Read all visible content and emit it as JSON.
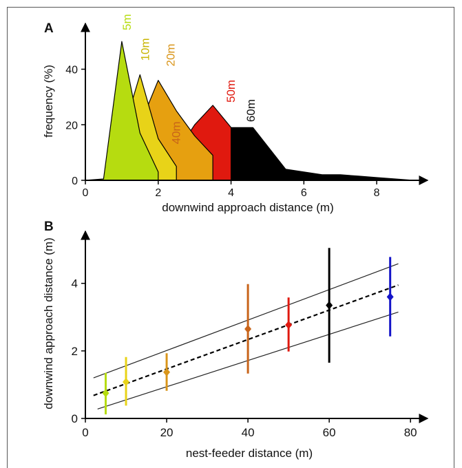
{
  "chart_data": [
    {
      "panel": "A",
      "type": "area",
      "xlabel": "downwind approach distance (m)",
      "ylabel": "frequency (%)",
      "xlim": [
        0,
        9
      ],
      "ylim": [
        0,
        55
      ],
      "xticks": [
        "0",
        "2",
        "4",
        "6",
        "8"
      ],
      "yticks": [
        "0",
        "20",
        "40"
      ],
      "series": [
        {
          "name": "60m",
          "color": "#000000",
          "x": [
            0.0,
            0.5,
            1.0,
            1.5,
            2.0,
            2.5,
            3.0,
            3.5,
            3.8,
            4.1,
            4.6,
            5.5,
            6.0,
            6.5,
            7.0,
            7.5,
            8.0,
            8.5,
            9.0
          ],
          "values": [
            0,
            0,
            0,
            2,
            3,
            5,
            8,
            14,
            19,
            19,
            19,
            4,
            3,
            2,
            2,
            1.5,
            1,
            0.5,
            0
          ]
        },
        {
          "name": "50m",
          "color": "#e0190f",
          "x": [
            0.0,
            1.5,
            2.0,
            2.5,
            3.0,
            3.5,
            4.0
          ],
          "values": [
            0,
            0,
            2,
            10,
            20,
            27,
            19
          ]
        },
        {
          "name": "40m",
          "color": "#c85a14",
          "x": [
            0.0,
            0.5,
            1.0,
            1.5,
            2.0,
            2.5,
            3.0
          ],
          "values": [
            0,
            0,
            6,
            8,
            9,
            8,
            9
          ]
        },
        {
          "name": "20m",
          "color": "#e6a010",
          "x": [
            0.0,
            0.5,
            1.0,
            1.5,
            2.0,
            2.5,
            3.0,
            3.5
          ],
          "values": [
            0,
            0,
            10,
            20,
            36,
            25,
            16,
            9
          ]
        },
        {
          "name": "10m",
          "color": "#e8d318",
          "x": [
            0.0,
            0.5,
            1.0,
            1.5,
            2.0,
            2.5
          ],
          "values": [
            0,
            0,
            16,
            38,
            15,
            5
          ]
        },
        {
          "name": "5m",
          "color": "#b6dc10",
          "x": [
            0.0,
            0.5,
            1.0,
            1.5,
            2.0
          ],
          "values": [
            0,
            0.5,
            50,
            17,
            3
          ]
        }
      ]
    },
    {
      "panel": "B",
      "type": "scatter",
      "xlabel": "nest-feeder distance (m)",
      "ylabel": "downwind approach distance (m)",
      "xlim": [
        0,
        82
      ],
      "ylim": [
        0,
        5.4
      ],
      "xticks": [
        "0",
        "20",
        "40",
        "60",
        "80"
      ],
      "yticks": [
        "0",
        "2",
        "4"
      ],
      "points": [
        {
          "x": 5,
          "y": 0.75,
          "low": 0.12,
          "high": 1.35,
          "color": "#b6dc10"
        },
        {
          "x": 10,
          "y": 1.08,
          "low": 0.38,
          "high": 1.82,
          "color": "#e8d318"
        },
        {
          "x": 20,
          "y": 1.37,
          "low": 0.82,
          "high": 1.93,
          "color": "#d9951a"
        },
        {
          "x": 40,
          "y": 2.65,
          "low": 1.33,
          "high": 3.98,
          "color": "#c8641a"
        },
        {
          "x": 50,
          "y": 2.77,
          "low": 1.98,
          "high": 3.58,
          "color": "#e0190f"
        },
        {
          "x": 60,
          "y": 3.35,
          "low": 1.65,
          "high": 5.05,
          "color": "#000000"
        },
        {
          "x": 75,
          "y": 3.6,
          "low": 2.43,
          "high": 4.78,
          "color": "#1414c8"
        }
      ],
      "fit": {
        "x": [
          2,
          77
        ],
        "y": [
          0.68,
          3.95
        ]
      },
      "upper_band": {
        "x": [
          2,
          77
        ],
        "y": [
          1.2,
          4.58
        ]
      },
      "lower_band": {
        "x": [
          3,
          77
        ],
        "y": [
          0.28,
          3.15
        ]
      }
    }
  ],
  "labels": {
    "panel_a": "A",
    "panel_b": "B"
  }
}
